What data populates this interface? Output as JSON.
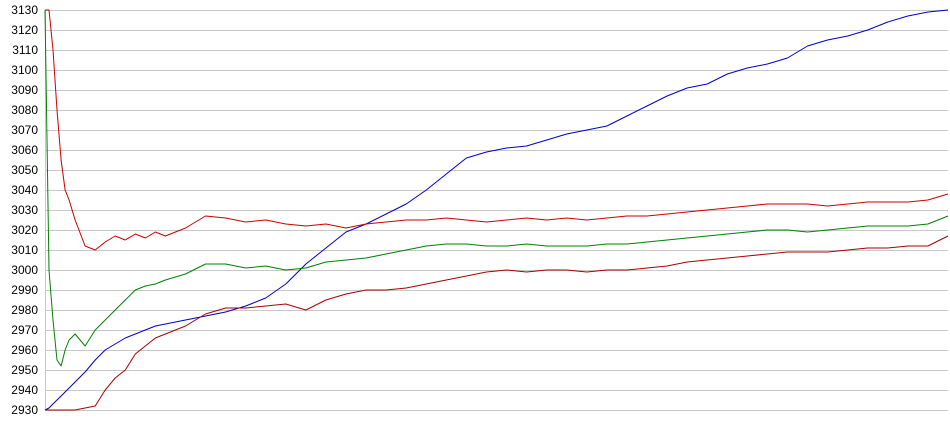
{
  "chart_data": {
    "type": "line",
    "title": "",
    "xlabel": "",
    "ylabel": "",
    "ylim": [
      2930,
      3130
    ],
    "yticks": [
      2930,
      2940,
      2950,
      2960,
      2970,
      2980,
      2990,
      3000,
      3010,
      3020,
      3030,
      3040,
      3050,
      3060,
      3070,
      3080,
      3090,
      3100,
      3110,
      3120,
      3130
    ],
    "grid": true,
    "legend": "none",
    "x": [
      0,
      2,
      4,
      6,
      8,
      10,
      12,
      15,
      20,
      25,
      30,
      35,
      40,
      45,
      50,
      55,
      60,
      70,
      80,
      90,
      100,
      110,
      120,
      130,
      140,
      150,
      160,
      170,
      180,
      190,
      200,
      210,
      220,
      230,
      240,
      250,
      260,
      270,
      280,
      290,
      300,
      310,
      320,
      330,
      340,
      350,
      360,
      370,
      380,
      390,
      400,
      410,
      420,
      430,
      440,
      450
    ],
    "series": [
      {
        "color": "#0000cc",
        "values": [
          2930,
          2931,
          2933,
          2935,
          2937,
          2939,
          2941,
          2944,
          2949,
          2955,
          2960,
          2963,
          2966,
          2968,
          2970,
          2972,
          2973,
          2975,
          2977,
          2979,
          2982,
          2986,
          2993,
          3003,
          3011,
          3019,
          3023,
          3028,
          3033,
          3040,
          3048,
          3056,
          3059,
          3061,
          3062,
          3065,
          3068,
          3070,
          3072,
          3077,
          3082,
          3087,
          3091,
          3093,
          3098,
          3101,
          3103,
          3106,
          3112,
          3115,
          3117,
          3120,
          3124,
          3127,
          3129,
          3130
        ]
      },
      {
        "color": "#cc0000",
        "values": [
          3130,
          3130,
          3110,
          3080,
          3055,
          3040,
          3035,
          3025,
          3012,
          3010,
          3014,
          3017,
          3015,
          3018,
          3016,
          3019,
          3017,
          3021,
          3027,
          3026,
          3024,
          3025,
          3023,
          3022,
          3023,
          3021,
          3023,
          3024,
          3025,
          3025,
          3026,
          3025,
          3024,
          3025,
          3026,
          3025,
          3026,
          3025,
          3026,
          3027,
          3027,
          3028,
          3029,
          3030,
          3031,
          3032,
          3033,
          3033,
          3033,
          3032,
          3033,
          3034,
          3034,
          3034,
          3035,
          3038
        ]
      },
      {
        "color": "#008000",
        "values": [
          3130,
          3000,
          2975,
          2955,
          2952,
          2960,
          2965,
          2968,
          2962,
          2970,
          2975,
          2980,
          2985,
          2990,
          2992,
          2993,
          2995,
          2998,
          3003,
          3003,
          3001,
          3002,
          3000,
          3001,
          3004,
          3005,
          3006,
          3008,
          3010,
          3012,
          3013,
          3013,
          3012,
          3012,
          3013,
          3012,
          3012,
          3012,
          3013,
          3013,
          3014,
          3015,
          3016,
          3017,
          3018,
          3019,
          3020,
          3020,
          3019,
          3020,
          3021,
          3022,
          3022,
          3022,
          3023,
          3027
        ]
      },
      {
        "color": "#aa0000",
        "values": [
          2930,
          2930,
          2930,
          2930,
          2930,
          2930,
          2930,
          2930,
          2931,
          2932,
          2940,
          2946,
          2950,
          2958,
          2962,
          2966,
          2968,
          2972,
          2978,
          2981,
          2981,
          2982,
          2983,
          2980,
          2985,
          2988,
          2990,
          2990,
          2991,
          2993,
          2995,
          2997,
          2999,
          3000,
          2999,
          3000,
          3000,
          2999,
          3000,
          3000,
          3001,
          3002,
          3004,
          3005,
          3006,
          3007,
          3008,
          3009,
          3009,
          3009,
          3010,
          3011,
          3011,
          3012,
          3012,
          3017
        ]
      }
    ]
  }
}
